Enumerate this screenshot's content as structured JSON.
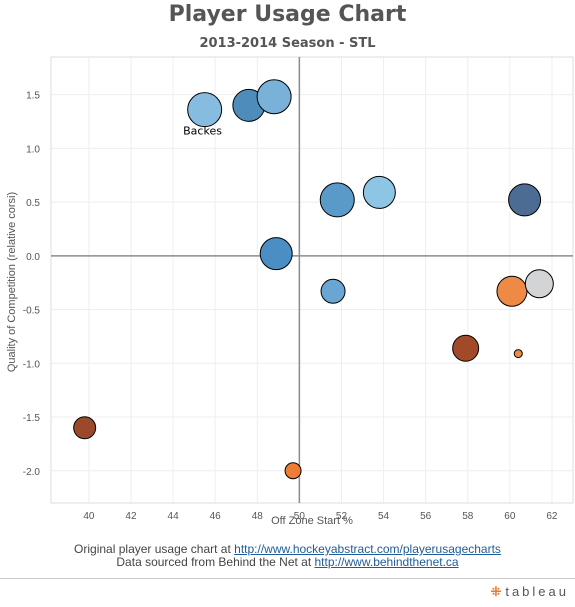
{
  "title": "Player Usage Chart",
  "subtitle": "2013-2014 Season - STL",
  "footer": {
    "line1_prefix": "Original player usage chart at ",
    "line1_link": "http://www.hockeyabstract.com/playerusagecharts",
    "line2_prefix": "Data sourced from Behind the Net at ",
    "line2_link": "http://www.behindthenet.ca"
  },
  "brand": {
    "text": "tableau",
    "icon": "tableau-logo-icon"
  },
  "chart_data": {
    "type": "scatter",
    "xlabel": "Off Zone Start %",
    "ylabel": "Quality of Competition (relative corsi)",
    "xlim": [
      38.2,
      63
    ],
    "ylim": [
      -2.3,
      1.85
    ],
    "xticks": [
      "40",
      "42",
      "44",
      "46",
      "48",
      "50",
      "52",
      "54",
      "56",
      "58",
      "60",
      "62"
    ],
    "yticks": [
      "1.5",
      "1.0",
      "0.5",
      "0.0",
      "-0.5",
      "-1.0",
      "-1.5",
      "-2.0"
    ],
    "grid": true,
    "reference_lines": {
      "x": 50,
      "y": 0
    },
    "annotations": [
      {
        "text": "Backes",
        "x": 45.4,
        "y": 1.13
      }
    ],
    "points": [
      {
        "x": 45.5,
        "y": 1.36,
        "size": 17,
        "color": "#86bcdf"
      },
      {
        "x": 47.6,
        "y": 1.4,
        "size": 16,
        "color": "#4e8cbb"
      },
      {
        "x": 48.8,
        "y": 1.48,
        "size": 17,
        "color": "#7ab1d8"
      },
      {
        "x": 51.8,
        "y": 0.52,
        "size": 17,
        "color": "#5a9ac9"
      },
      {
        "x": 53.8,
        "y": 0.59,
        "size": 16,
        "color": "#8ec4e4"
      },
      {
        "x": 60.7,
        "y": 0.52,
        "size": 16,
        "color": "#4d6c94"
      },
      {
        "x": 48.9,
        "y": 0.02,
        "size": 16,
        "color": "#4a8ec4"
      },
      {
        "x": 51.6,
        "y": -0.33,
        "size": 12,
        "color": "#6aa6d4"
      },
      {
        "x": 60.1,
        "y": -0.33,
        "size": 15,
        "color": "#ee8a45"
      },
      {
        "x": 61.4,
        "y": -0.26,
        "size": 14,
        "color": "#d2d4d6"
      },
      {
        "x": 57.9,
        "y": -0.86,
        "size": 13,
        "color": "#a24a28"
      },
      {
        "x": 60.4,
        "y": -0.91,
        "size": 4,
        "color": "#ee8a45"
      },
      {
        "x": 39.8,
        "y": -1.6,
        "size": 11,
        "color": "#9a4a2a"
      },
      {
        "x": 49.7,
        "y": -2.0,
        "size": 8,
        "color": "#ee7c35"
      }
    ]
  }
}
